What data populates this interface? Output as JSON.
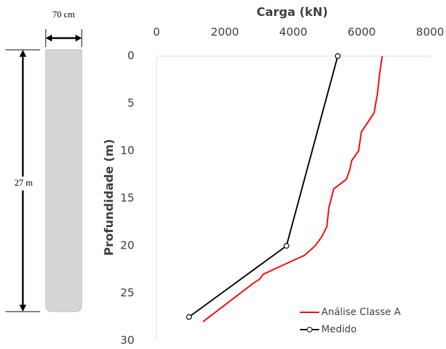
{
  "chart_data": {
    "type": "line",
    "title": "Carga (kN)",
    "y_label": "Profundidade (m)",
    "annotations": {
      "width": "70 cm",
      "length": "27 m"
    },
    "xlim": [
      0,
      8000
    ],
    "xticks": [
      0,
      2000,
      4000,
      6000,
      8000
    ],
    "ylim": [
      0,
      30
    ],
    "yticks": [
      0,
      5,
      10,
      15,
      20,
      25,
      30
    ],
    "y_inverted": true,
    "series": [
      {
        "name": "Análise Classe A",
        "color": "#ff0000",
        "markers": false,
        "x": [
          6600,
          6520,
          6460,
          6360,
          5990,
          5910,
          5710,
          5650,
          5550,
          5180,
          5040,
          4980,
          4840,
          4640,
          4330,
          3720,
          3120,
          3020,
          2810,
          1360
        ],
        "y": [
          0,
          2,
          4,
          6,
          8,
          10,
          11,
          12,
          13,
          14,
          16,
          18,
          19,
          20,
          21,
          22,
          23,
          23.5,
          24,
          28
        ]
      },
      {
        "name": "Medido",
        "color": "#000000",
        "markers": true,
        "x": [
          5300,
          3800,
          950
        ],
        "y": [
          0,
          20,
          27.5
        ]
      }
    ]
  }
}
